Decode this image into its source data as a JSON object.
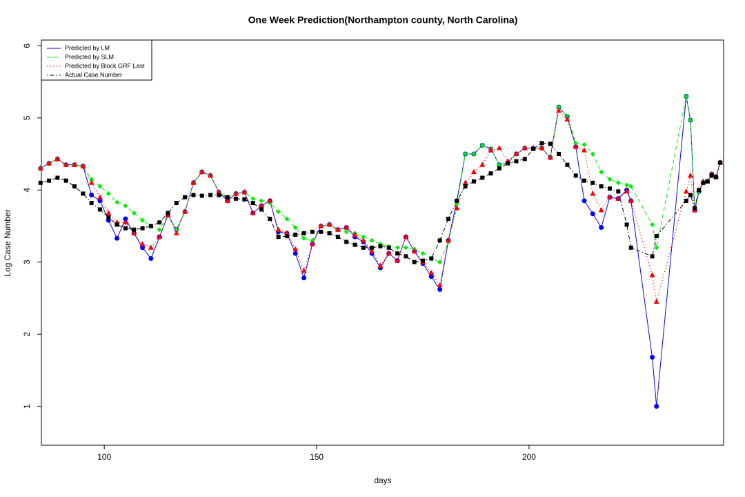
{
  "chart_data": {
    "type": "line",
    "title": "One Week Prediction(Northampton county, North Carolina)",
    "x_label": "days",
    "y_label": "Log Case Number",
    "x": [
      85,
      87,
      89,
      91,
      93,
      95,
      97,
      99,
      101,
      103,
      105,
      107,
      109,
      111,
      113,
      115,
      117,
      119,
      121,
      123,
      125,
      127,
      129,
      131,
      133,
      135,
      137,
      139,
      141,
      143,
      145,
      147,
      149,
      151,
      153,
      155,
      157,
      159,
      161,
      163,
      165,
      167,
      169,
      171,
      173,
      175,
      177,
      179,
      181,
      183,
      185,
      187,
      189,
      191,
      193,
      195,
      197,
      199,
      201,
      203,
      205,
      207,
      209,
      211,
      213,
      215,
      217,
      219,
      221,
      223,
      224,
      229,
      230,
      237,
      238,
      239,
      240,
      241,
      242,
      243,
      244,
      245
    ],
    "xlim": [
      85.2,
      245.8
    ],
    "xticks": [
      100,
      150,
      200
    ],
    "ylim": [
      0.46,
      6.08
    ],
    "yticks": [
      1,
      2,
      3,
      4,
      5,
      6
    ],
    "legend": "top-left",
    "series": [
      {
        "name": "Predicted by LM",
        "color": "#0000ff",
        "dash": "solid",
        "marker": "circle",
        "values": [
          4.3,
          4.37,
          4.43,
          4.35,
          4.35,
          4.33,
          3.93,
          3.85,
          3.58,
          3.33,
          3.6,
          3.4,
          3.2,
          3.05,
          3.35,
          3.65,
          3.45,
          3.7,
          4.1,
          4.25,
          4.2,
          3.97,
          3.85,
          3.95,
          3.97,
          3.68,
          3.78,
          3.85,
          3.42,
          3.4,
          3.12,
          2.78,
          3.25,
          3.5,
          3.52,
          3.45,
          3.48,
          3.35,
          3.28,
          3.12,
          2.92,
          3.12,
          3.02,
          3.35,
          3.15,
          2.98,
          2.8,
          2.62,
          3.3,
          3.85,
          4.5,
          4.5,
          4.62,
          4.57,
          4.35,
          4.38,
          4.5,
          4.58,
          4.58,
          4.58,
          4.45,
          5.15,
          5.02,
          4.6,
          3.85,
          3.67,
          3.48,
          3.9,
          3.88,
          4.0,
          3.85,
          1.68,
          1.0,
          5.3,
          4.97,
          3.72,
          3.98,
          4.1,
          4.12,
          4.22,
          4.18,
          4.38
        ]
      },
      {
        "name": "Predicted by SLM",
        "color": "#00ee00",
        "dash": "dashed",
        "marker": "diamond",
        "values": [
          4.3,
          4.37,
          4.43,
          4.35,
          4.35,
          4.33,
          4.15,
          4.05,
          3.95,
          3.83,
          3.78,
          3.68,
          3.58,
          3.5,
          3.45,
          3.65,
          3.45,
          3.7,
          4.1,
          4.25,
          4.2,
          3.97,
          3.9,
          3.95,
          3.97,
          3.88,
          3.85,
          3.82,
          3.7,
          3.6,
          3.48,
          3.33,
          3.3,
          3.5,
          3.52,
          3.45,
          3.42,
          3.4,
          3.35,
          3.3,
          3.25,
          3.22,
          3.2,
          3.2,
          3.18,
          3.12,
          3.05,
          3.0,
          3.28,
          3.8,
          4.5,
          4.5,
          4.62,
          4.57,
          4.35,
          4.38,
          4.5,
          4.58,
          4.58,
          4.58,
          4.45,
          5.15,
          5.02,
          4.65,
          4.63,
          4.5,
          4.25,
          4.15,
          4.1,
          4.07,
          4.05,
          3.52,
          3.2,
          5.3,
          4.97,
          3.75,
          3.98,
          4.1,
          4.12,
          4.22,
          4.18,
          4.38
        ]
      },
      {
        "name": "Predicted by Block GRF Last",
        "color": "#ff0000",
        "dash": "dotted",
        "marker": "triangle",
        "values": [
          4.3,
          4.37,
          4.43,
          4.35,
          4.35,
          4.33,
          4.1,
          3.9,
          3.68,
          3.55,
          3.55,
          3.4,
          3.25,
          3.2,
          3.35,
          3.65,
          3.4,
          3.7,
          4.1,
          4.25,
          4.2,
          3.97,
          3.85,
          3.95,
          3.97,
          3.68,
          3.78,
          3.85,
          3.45,
          3.4,
          3.18,
          2.88,
          3.25,
          3.5,
          3.52,
          3.45,
          3.48,
          3.38,
          3.3,
          3.15,
          2.95,
          3.12,
          3.02,
          3.35,
          3.15,
          3.0,
          2.85,
          2.68,
          3.3,
          3.75,
          4.1,
          4.25,
          4.35,
          4.55,
          4.58,
          4.4,
          4.5,
          4.58,
          4.58,
          4.58,
          4.45,
          5.1,
          4.98,
          4.6,
          4.55,
          3.95,
          3.72,
          3.9,
          3.88,
          3.98,
          3.85,
          2.82,
          2.45,
          3.98,
          4.2,
          3.72,
          4.0,
          4.12,
          4.12,
          4.22,
          4.18,
          4.38
        ]
      },
      {
        "name": "Actual Case Number",
        "color": "#000000",
        "dash": "dashdot",
        "marker": "square",
        "values": [
          4.1,
          4.13,
          4.17,
          4.13,
          4.05,
          3.95,
          3.82,
          3.73,
          3.62,
          3.52,
          3.47,
          3.45,
          3.47,
          3.5,
          3.55,
          3.68,
          3.82,
          3.9,
          3.93,
          3.92,
          3.93,
          3.93,
          3.9,
          3.88,
          3.87,
          3.82,
          3.73,
          3.6,
          3.35,
          3.36,
          3.38,
          3.4,
          3.42,
          3.42,
          3.4,
          3.35,
          3.28,
          3.24,
          3.2,
          3.2,
          3.22,
          3.2,
          3.12,
          3.08,
          3.0,
          3.02,
          3.05,
          3.3,
          3.6,
          3.85,
          4.05,
          4.12,
          4.17,
          4.23,
          4.3,
          4.37,
          4.4,
          4.43,
          4.57,
          4.65,
          4.64,
          4.5,
          4.35,
          4.2,
          4.13,
          4.1,
          4.05,
          4.02,
          3.98,
          3.52,
          3.2,
          3.08,
          3.36,
          3.85,
          3.93,
          3.75,
          4.0,
          4.1,
          4.12,
          4.2,
          4.18,
          4.38
        ]
      }
    ]
  }
}
